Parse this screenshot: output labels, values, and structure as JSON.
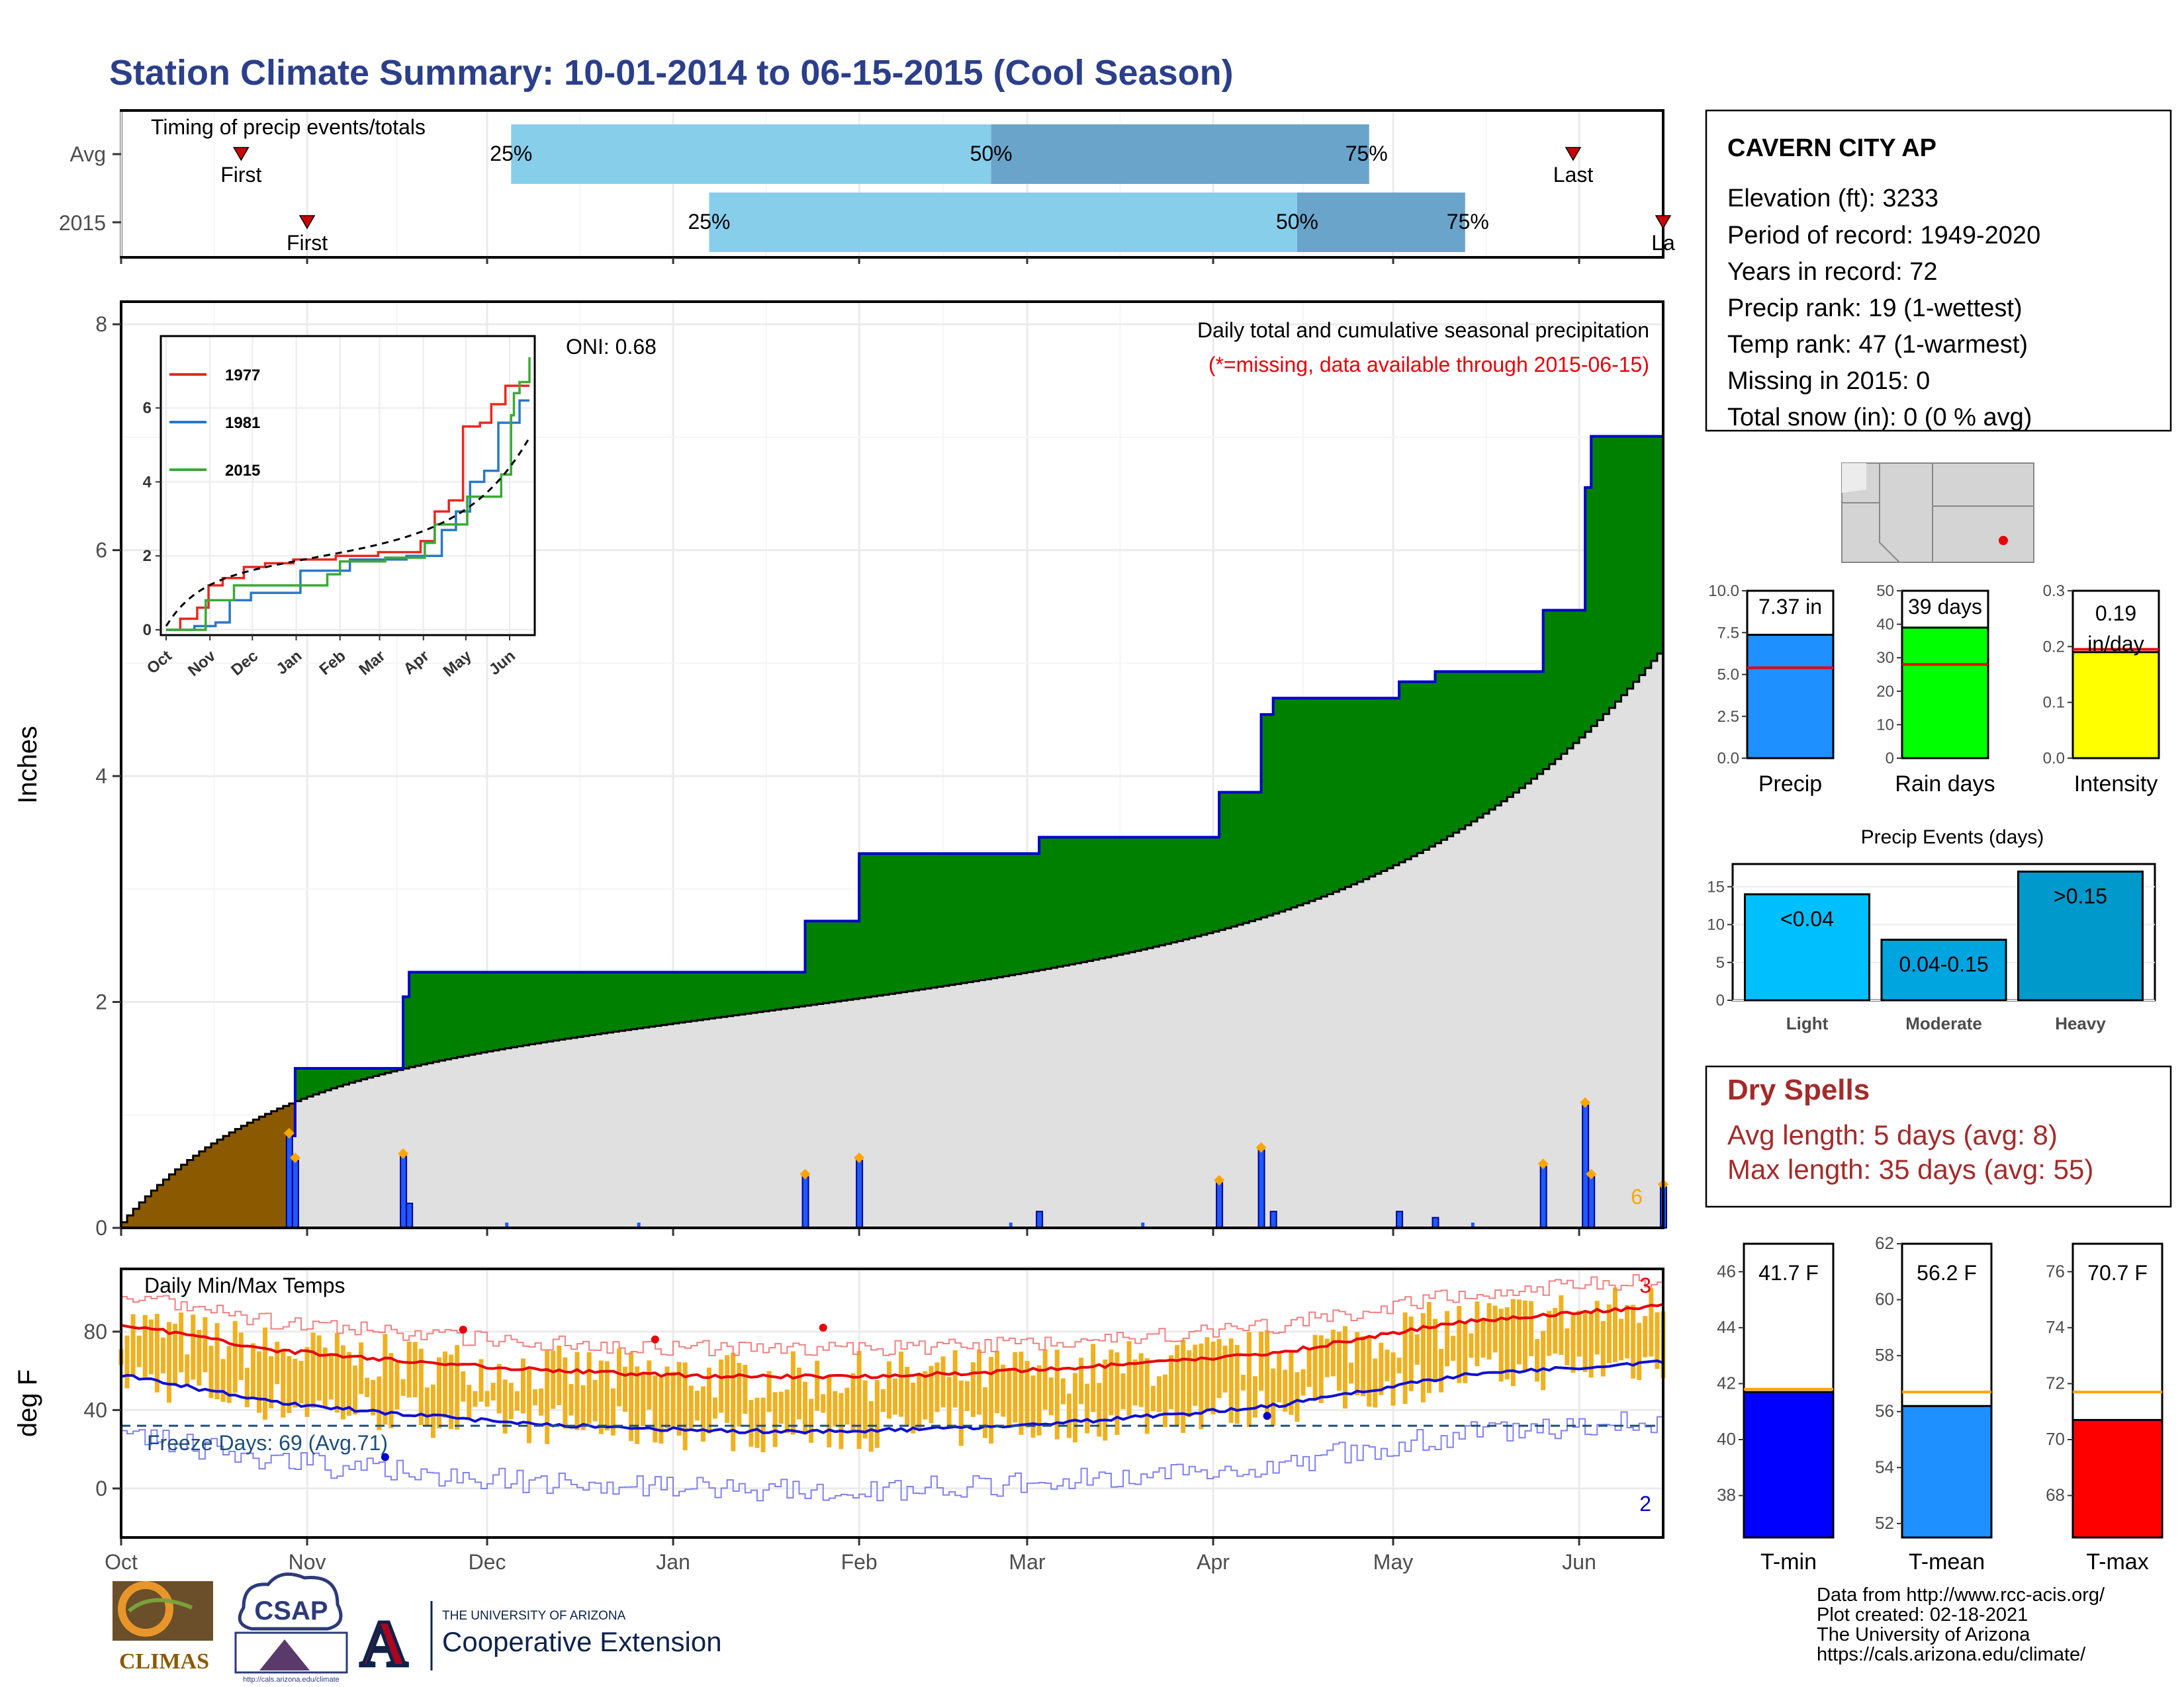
{
  "title": "Station Climate Summary: 10-01-2014 to 06-15-2015 (Cool Season)",
  "timing": {
    "label": "Timing of precip events/totals",
    "rows": [
      {
        "name": "Avg",
        "first_day": 20,
        "last_day": 242,
        "p25_day": 65,
        "p50_day": 145,
        "p75_day": 208
      },
      {
        "name": "2015",
        "first_day": 31,
        "last_day": 257,
        "p25_day": 98,
        "p50_day": 196,
        "p75_day": 224
      }
    ],
    "first_label": "First",
    "last_label": "Last",
    "last_label_2015": "La",
    "p25_label": "25%",
    "p50_label": "50%",
    "p75_label": "75%",
    "colors": {
      "p25_50": "#87ceeb",
      "p50_75": "#6aa4cb",
      "marker": "#cc0000"
    }
  },
  "months": [
    "Oct",
    "Nov",
    "Dec",
    "Jan",
    "Feb",
    "Mar",
    "Apr",
    "May",
    "Jun"
  ],
  "precip_panel": {
    "ylabel": "Inches",
    "oni_label": "ONI: 0.68",
    "subtitle": "Daily total and cumulative seasonal precipitation",
    "missing_note": "(*=missing, data available through 2015-06-15)",
    "extreme_count": "6",
    "yticks": [
      "0",
      "2",
      "4",
      "6",
      "8"
    ],
    "ylim": [
      0,
      8
    ],
    "colors": {
      "above": "#008000",
      "below": "#8b5a00",
      "avg": "#e0e0e0",
      "obs_line": "#0000cc",
      "daily_bar": "#1e5aff",
      "extreme": "#ffa500"
    }
  },
  "inset": {
    "legend": [
      "1977",
      "1981",
      "2015"
    ],
    "legend_colors": [
      "#e8281e",
      "#2a78c8",
      "#3aaa35"
    ],
    "yticks": [
      "0",
      "2",
      "4",
      "6"
    ],
    "months": [
      "Oct",
      "Nov",
      "Dec",
      "Jan",
      "Feb",
      "Mar",
      "Apr",
      "May",
      "Jun"
    ]
  },
  "temp_panel": {
    "ylabel": "deg F",
    "label": "Daily Min/Max Temps",
    "freeze_label": "Freeze Days: 69 (Avg.71)",
    "record_high_count": "3",
    "record_low_count": "2",
    "yticks": [
      "0",
      "40",
      "80"
    ],
    "freeze_f": 32,
    "ylim": [
      -20,
      110
    ],
    "colors": {
      "bar": "#f0b020",
      "avg_max": "#e8000a",
      "avg_min": "#1010d0",
      "rec_max": "#f08080",
      "rec_min": "#8080f0",
      "freeze": "#1f4e79"
    }
  },
  "station": {
    "name": "CAVERN CITY AP",
    "lines": [
      "Elevation (ft): 3233",
      "Period of record: 1949-2020",
      "Years in record: 72",
      "Precip rank: 19 (1-wettest)",
      "Temp rank: 47 (1-warmest)",
      "Missing in 2015: 0",
      "Total snow (in): 0 (0 % avg)"
    ]
  },
  "summary_bars": [
    {
      "label": "Precip",
      "value": 7.37,
      "avg": 5.4,
      "value_label": "7.37 in",
      "ymax": 10,
      "yticks": [
        "0.0",
        "2.5",
        "5.0",
        "7.5",
        "10.0"
      ],
      "color": "#1e90ff"
    },
    {
      "label": "Rain days",
      "value": 39,
      "avg": 28,
      "value_label": "39 days",
      "ymax": 50,
      "yticks": [
        "0",
        "10",
        "20",
        "30",
        "40",
        "50"
      ],
      "color": "#00ff00"
    },
    {
      "label": "Intensity",
      "value": 0.19,
      "avg": 0.195,
      "value_label": "0.19",
      "value_label2": "in/day",
      "ymax": 0.3,
      "yticks": [
        "0.0",
        "0.1",
        "0.2",
        "0.3"
      ],
      "color": "#ffff00"
    }
  ],
  "precip_events": {
    "title": "Precip Events (days)",
    "categories": [
      "Light",
      "Moderate",
      "Heavy"
    ],
    "labels": [
      "<0.04",
      "0.04-0.15",
      ">0.15"
    ],
    "values": [
      14,
      8,
      17
    ],
    "yticks": [
      "0",
      "5",
      "10",
      "15"
    ],
    "colors": [
      "#00bfff",
      "#00a5e0",
      "#0099cc"
    ]
  },
  "dry_spells": {
    "title": "Dry Spells",
    "line1": "Avg length: 5 days (avg: 8)",
    "line2": "Max length: 35 days (avg: 55)",
    "color": "#a52a2a"
  },
  "temp_bars": [
    {
      "label": "T-min",
      "value": 41.7,
      "avg": 41.8,
      "value_label": "41.7 F",
      "ylim": [
        36.5,
        47
      ],
      "yticks": [
        "38",
        "40",
        "42",
        "44",
        "46"
      ],
      "color": "#0000ff"
    },
    {
      "label": "T-mean",
      "value": 56.2,
      "avg": 56.7,
      "value_label": "56.2 F",
      "ylim": [
        51.5,
        62
      ],
      "yticks": [
        "52",
        "54",
        "56",
        "58",
        "60",
        "62"
      ],
      "color": "#1e90ff"
    },
    {
      "label": "T-max",
      "value": 70.7,
      "avg": 71.7,
      "value_label": "70.7 F",
      "ylim": [
        66.5,
        77
      ],
      "yticks": [
        "68",
        "70",
        "72",
        "74",
        "76"
      ],
      "color": "#ff0000"
    }
  ],
  "footer": {
    "lines": [
      "Data from http://www.rcc-acis.org/",
      "Plot created: 02-18-2021",
      "The University of Arizona",
      "https://cals.arizona.edu/climate/"
    ]
  },
  "logos": {
    "climas": "CLIMAS",
    "csap": "CSAP",
    "csap_url": "http://cals.arizona.edu/climate",
    "ua_small": "THE UNIVERSITY OF ARIZONA",
    "ua_big": "Cooperative Extension",
    "ua_letter": "A"
  }
}
